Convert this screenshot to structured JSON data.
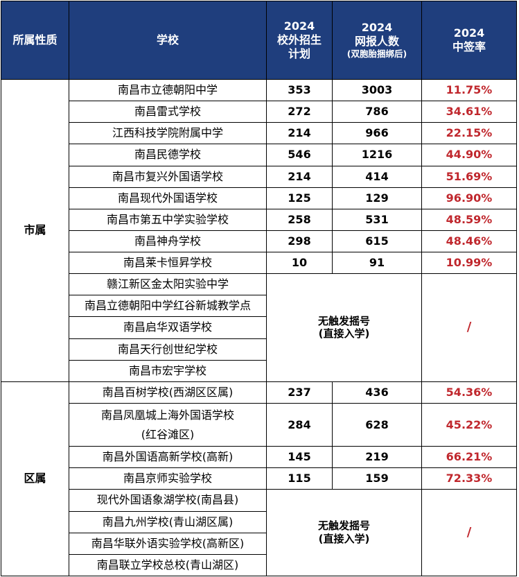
{
  "header": {
    "category": "所属性质",
    "school": "学校",
    "plan": [
      "2024",
      "校外招生",
      "计划"
    ],
    "applicants": [
      "2024",
      "网报人数",
      "(双胞胎捆绑后)"
    ],
    "rate": [
      "2024",
      "中签率"
    ]
  },
  "groups": [
    {
      "category": "市属",
      "rows": [
        {
          "school": "南昌市立德朝阳中学",
          "plan": "353",
          "applicants": "3003",
          "rate": "11.75%"
        },
        {
          "school": "南昌雷式学校",
          "plan": "272",
          "applicants": "786",
          "rate": "34.61%"
        },
        {
          "school": "江西科技学院附属中学",
          "plan": "214",
          "applicants": "966",
          "rate": "22.15%"
        },
        {
          "school": "南昌民德学校",
          "plan": "546",
          "applicants": "1216",
          "rate": "44.90%"
        },
        {
          "school": "南昌市复兴外国语学校",
          "plan": "214",
          "applicants": "414",
          "rate": "51.69%"
        },
        {
          "school": "南昌现代外国语学校",
          "plan": "125",
          "applicants": "129",
          "rate": "96.90%"
        },
        {
          "school": "南昌市第五中学实验学校",
          "plan": "258",
          "applicants": "531",
          "rate": "48.59%"
        },
        {
          "school": "南昌神舟学校",
          "plan": "298",
          "applicants": "615",
          "rate": "48.46%"
        },
        {
          "school": "南昌莱卡恒昇学校",
          "plan": "10",
          "applicants": "91",
          "rate": "10.99%"
        }
      ],
      "no_lottery": {
        "schools": [
          "赣江新区金太阳实验中学",
          "南昌立德朝阳中学红谷新城教学点",
          "南昌启华双语学校",
          "南昌天行创世纪学校",
          "南昌市宏宇学校"
        ],
        "note": [
          "无触发摇号",
          "(直接入学)"
        ],
        "rate": "/"
      }
    },
    {
      "category": "区属",
      "rows": [
        {
          "school": "南昌百树学校(西湖区区属)",
          "plan": "237",
          "applicants": "436",
          "rate": "54.36%"
        },
        {
          "school": "南昌凤凰城上海外国语学校(红谷滩区)",
          "school_lines": [
            "南昌凤凰城上海外国语学校",
            "(红谷滩区)"
          ],
          "plan": "284",
          "applicants": "628",
          "rate": "45.22%"
        },
        {
          "school": "南昌外国语高新学校(高新)",
          "plan": "145",
          "applicants": "219",
          "rate": "66.21%"
        },
        {
          "school": "南昌京师实验学校",
          "plan": "115",
          "applicants": "159",
          "rate": "72.33%"
        }
      ],
      "no_lottery": {
        "schools": [
          "现代外国语象湖学校(南昌县)",
          "南昌九州学校(青山湖区属)",
          "南昌华联外语实验学校(高新区)",
          "南昌联立学校总校(青山湖区)"
        ],
        "note": [
          "无触发摇号",
          "(直接入学)"
        ],
        "rate": "/"
      }
    }
  ]
}
